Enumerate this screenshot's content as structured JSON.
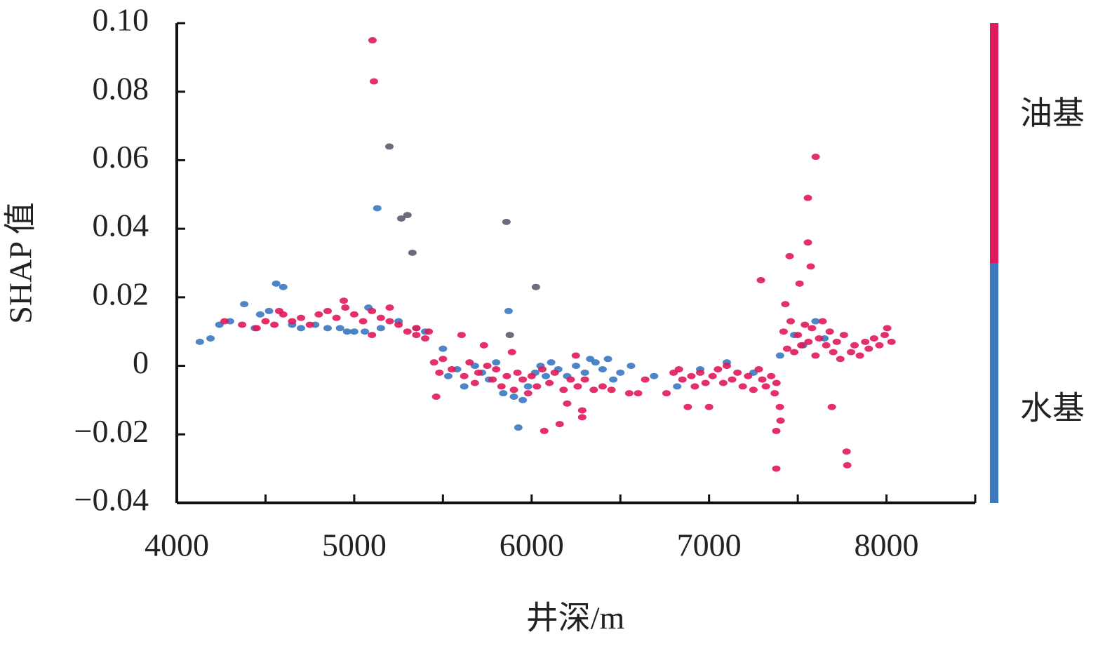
{
  "chart_data": {
    "type": "scatter",
    "x_label": "井深/m",
    "y_label": "SHAP 值",
    "xlim": [
      4000,
      8500
    ],
    "xticks": [
      4000,
      5000,
      6000,
      7000,
      8000
    ],
    "xminor_ticks": [
      4500,
      5500,
      6500,
      7500,
      8500
    ],
    "ylim": [
      -0.04,
      0.1
    ],
    "yticks": [
      {
        "value": 0.1,
        "label": "0.10"
      },
      0.08,
      0.06,
      0.04,
      0.02,
      0,
      {
        "value": -0.02,
        "label": "−0.02"
      },
      {
        "value": -0.04,
        "label": "−0.04"
      }
    ],
    "series": [
      {
        "name": "油基",
        "color": "#e0195a",
        "x": [
          4450,
          4500,
          4550,
          4600,
          4650,
          4700,
          4750,
          4800,
          4850,
          4900,
          4950,
          5000,
          5050,
          5100,
          5150,
          5200,
          5250,
          5300,
          5350,
          5400,
          5100,
          5200,
          5350,
          5420,
          4941,
          4577,
          4368,
          4269,
          5103,
          5111,
          5450,
          5480,
          5500,
          5462,
          5550,
          5605,
          5620,
          5650,
          5680,
          5700,
          5731,
          5750,
          5780,
          5800,
          5830,
          5860,
          5889,
          5900,
          5920,
          5950,
          5980,
          6000,
          6030,
          6060,
          6071,
          6100,
          6130,
          6158,
          6180,
          6200,
          6220,
          6249,
          6260,
          6285,
          6285,
          6300,
          6350,
          6400,
          6450,
          6550,
          6600,
          6640,
          6760,
          6800,
          6830,
          6850,
          6880,
          6900,
          6920,
          6950,
          6980,
          7000,
          7020,
          7050,
          7080,
          7100,
          7130,
          7160,
          7190,
          7220,
          7250,
          7280,
          7300,
          7320,
          7350,
          7370,
          7380,
          7379,
          7379,
          7403,
          7399,
          7292,
          7420,
          7430,
          7440,
          7454,
          7460,
          7480,
          7500,
          7510,
          7520,
          7540,
          7557,
          7557,
          7560,
          7573,
          7580,
          7600,
          7601,
          7620,
          7640,
          7660,
          7680,
          7692,
          7700,
          7720,
          7740,
          7760,
          7775,
          7779,
          7800,
          7820,
          7850,
          7880,
          7900,
          7930,
          7960,
          7990,
          8004,
          8028
        ],
        "values": [
          0.011,
          0.013,
          0.012,
          0.015,
          0.013,
          0.014,
          0.012,
          0.015,
          0.016,
          0.014,
          0.017,
          0.015,
          0.013,
          0.016,
          0.014,
          0.013,
          0.012,
          0.01,
          0.009,
          0.008,
          0.009,
          0.017,
          0.011,
          0.01,
          0.019,
          0.016,
          0.012,
          0.013,
          0.095,
          0.083,
          0.001,
          -0.002,
          0.002,
          -0.009,
          -0.001,
          0.009,
          -0.003,
          0.001,
          -0.005,
          -0.002,
          0.006,
          0,
          -0.004,
          -0.001,
          -0.006,
          -0.003,
          0.004,
          -0.007,
          -0.002,
          -0.004,
          -0.008,
          -0.003,
          -0.006,
          -0.001,
          -0.019,
          -0.005,
          -0.002,
          -0.017,
          -0.007,
          -0.011,
          -0.004,
          0.003,
          -0.006,
          -0.015,
          -0.013,
          -0.004,
          -0.007,
          -0.006,
          -0.007,
          -0.008,
          -0.008,
          -0.004,
          -0.008,
          -0.002,
          -0.001,
          -0.004,
          -0.012,
          -0.003,
          -0.006,
          -0.002,
          -0.005,
          -0.012,
          -0.003,
          -0.001,
          -0.005,
          0,
          -0.004,
          -0.002,
          -0.006,
          -0.003,
          -0.007,
          -0.001,
          -0.004,
          -0.006,
          -0.003,
          -0.008,
          -0.005,
          -0.03,
          -0.019,
          -0.016,
          -0.012,
          0.025,
          0.01,
          0.018,
          0.005,
          0.032,
          0.013,
          0.004,
          0.009,
          0.024,
          0.006,
          0.012,
          0.049,
          0.036,
          0.007,
          0.029,
          0.011,
          0.003,
          0.061,
          0.008,
          0.013,
          0.006,
          0.01,
          -0.012,
          0.004,
          0.007,
          0.002,
          0.009,
          -0.025,
          -0.029,
          0.004,
          0.006,
          0.003,
          0.007,
          0.005,
          0.008,
          0.006,
          0.009,
          0.011,
          0.007
        ]
      },
      {
        "name": "水基",
        "color": "#3a78c0",
        "x": [
          4130,
          4190,
          4240,
          4300,
          4380,
          4440,
          4470,
          4520,
          4560,
          4600,
          4650,
          4700,
          4780,
          4850,
          4920,
          4960,
          5000,
          5060,
          5080,
          5130,
          5150,
          5250,
          5350,
          5400,
          5500,
          5530,
          5580,
          5620,
          5680,
          5720,
          5760,
          5800,
          5840,
          5870,
          5900,
          5925,
          5950,
          5980,
          6020,
          6050,
          6080,
          6110,
          6150,
          6200,
          6250,
          6300,
          6330,
          6360,
          6400,
          6430,
          6460,
          6500,
          6560,
          6690,
          6820,
          6950,
          7100,
          7250,
          7400,
          7480,
          7530,
          7600,
          7650
        ],
        "values": [
          0.007,
          0.008,
          0.012,
          0.013,
          0.018,
          0.011,
          0.015,
          0.016,
          0.024,
          0.023,
          0.012,
          0.011,
          0.012,
          0.011,
          0.011,
          0.01,
          0.01,
          0.01,
          0.017,
          0.046,
          0.011,
          0.013,
          0.011,
          0.01,
          0.005,
          -0.003,
          -0.001,
          -0.006,
          0,
          -0.002,
          -0.004,
          0.001,
          -0.008,
          0.016,
          -0.009,
          -0.018,
          -0.01,
          -0.006,
          -0.002,
          0,
          -0.003,
          0.001,
          -0.001,
          -0.003,
          0,
          -0.002,
          0.002,
          0.001,
          -0.001,
          0.002,
          -0.004,
          -0.002,
          0,
          -0.003,
          -0.006,
          -0.001,
          0.001,
          -0.002,
          0.003,
          0.009,
          0.006,
          0.013,
          0.008
        ]
      },
      {
        "color": "#5c5c6e",
        "x": [
          5198,
          5858,
          6024,
          5328,
          5265,
          5300,
          5877
        ],
        "values": [
          0.064,
          0.042,
          0.023,
          0.033,
          0.043,
          0.044,
          0.009
        ]
      }
    ]
  }
}
